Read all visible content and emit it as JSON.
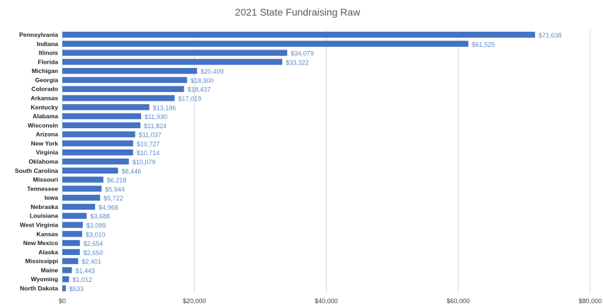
{
  "chart_data": {
    "type": "bar",
    "orientation": "horizontal",
    "title": "2021 State Fundraising Raw",
    "xlabel": "",
    "ylabel": "",
    "xlim": [
      0,
      80000
    ],
    "x_ticks": [
      0,
      20000,
      40000,
      60000,
      80000
    ],
    "x_tick_labels": [
      "$0",
      "$20,000",
      "$40,000",
      "$60,000",
      "$80,000"
    ],
    "grid": "vertical",
    "legend": "none",
    "bar_color": "#4472c4",
    "label_color": "#5b8cc9",
    "categories": [
      "Pennsylvania",
      "Indiana",
      "Illinois",
      "Florida",
      "Michigan",
      "Georgia",
      "Colorado",
      "Arkansas",
      "Kentucky",
      "Alabama",
      "Wisconsin",
      "Arizona",
      "New York",
      "Virginia",
      "Oklahoma",
      "South Carolina",
      "Missouri",
      "Tennessee",
      "Iowa",
      "Nebraska",
      "Louisiana",
      "West Virginia",
      "Kansas",
      "New Mexico",
      "Alaska",
      "Mississippi",
      "Maine",
      "Wyoming",
      "North Dakota"
    ],
    "values": [
      71638,
      61525,
      34079,
      33322,
      20409,
      18900,
      18437,
      17019,
      13186,
      11930,
      11824,
      11037,
      10727,
      10714,
      10079,
      8446,
      6218,
      5944,
      5722,
      4968,
      3688,
      3099,
      3010,
      2654,
      2650,
      2401,
      1443,
      1012,
      533
    ],
    "data_labels": [
      "$71,638",
      "$61,525",
      "$34,079",
      "$33,322",
      "$20,409",
      "$18,900",
      "$18,437",
      "$17,019",
      "$13,186",
      "$11,930",
      "$11,824",
      "$11,037",
      "$10,727",
      "$10,714",
      "$10,079",
      "$8,446",
      "$6,218",
      "$5,944",
      "$5,722",
      "$4,968",
      "$3,688",
      "$3,099",
      "$3,010",
      "$2,654",
      "$2,650",
      "$2,401",
      "$1,443",
      "$1,012",
      "$533"
    ]
  }
}
